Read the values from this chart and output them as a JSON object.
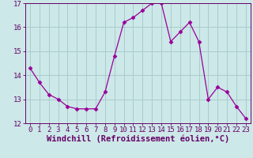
{
  "x": [
    0,
    1,
    2,
    3,
    4,
    5,
    6,
    7,
    8,
    9,
    10,
    11,
    12,
    13,
    14,
    15,
    16,
    17,
    18,
    19,
    20,
    21,
    22,
    23
  ],
  "y": [
    14.3,
    13.7,
    13.2,
    13.0,
    12.7,
    12.6,
    12.6,
    12.6,
    13.3,
    14.8,
    16.2,
    16.4,
    16.7,
    17.0,
    17.0,
    15.4,
    15.8,
    16.2,
    15.4,
    13.0,
    13.5,
    13.3,
    12.7,
    12.2
  ],
  "line_color": "#990099",
  "marker": "D",
  "marker_size": 2.5,
  "bg_color": "#cce8e8",
  "grid_color": "#aacccc",
  "xlabel": "Windchill (Refroidissement éolien,°C)",
  "xlim": [
    -0.5,
    23.5
  ],
  "ylim": [
    12,
    17
  ],
  "yticks": [
    12,
    13,
    14,
    15,
    16,
    17
  ],
  "xticks": [
    0,
    1,
    2,
    3,
    4,
    5,
    6,
    7,
    8,
    9,
    10,
    11,
    12,
    13,
    14,
    15,
    16,
    17,
    18,
    19,
    20,
    21,
    22,
    23
  ],
  "tick_color": "#660066",
  "label_color": "#660066",
  "spine_color": "#660066",
  "font_size": 6.5,
  "xlabel_font_size": 7.5
}
